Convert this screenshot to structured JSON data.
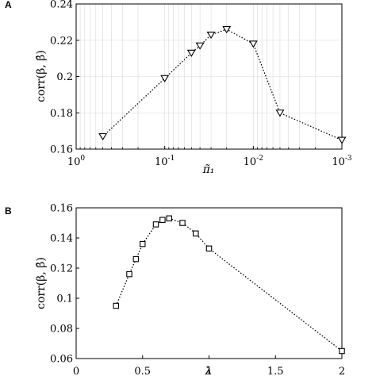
{
  "chart_data": [
    {
      "panel": "A",
      "type": "line",
      "marker": "triangle-down",
      "xscale": "log",
      "x_reversed": true,
      "x": [
        0.5,
        0.1,
        0.05,
        0.04,
        0.03,
        0.02,
        0.01,
        0.005,
        0.001
      ],
      "y": [
        0.167,
        0.199,
        0.213,
        0.217,
        0.223,
        0.226,
        0.218,
        0.18,
        0.165
      ],
      "xlim": [
        1,
        0.001
      ],
      "ylim": [
        0.16,
        0.24
      ],
      "xticks": [
        {
          "value": 1,
          "base": "10",
          "exp": "0"
        },
        {
          "value": 0.1,
          "base": "10",
          "exp": "-1"
        },
        {
          "value": 0.01,
          "base": "10",
          "exp": "-2"
        },
        {
          "value": 0.001,
          "base": "10",
          "exp": "-3"
        }
      ],
      "yticks": [
        {
          "value": 0.16,
          "label": "0.16"
        },
        {
          "value": 0.18,
          "label": "0.18"
        },
        {
          "value": 0.2,
          "label": "0.2"
        },
        {
          "value": 0.22,
          "label": "0.22"
        },
        {
          "value": 0.24,
          "label": "0.24"
        }
      ],
      "xlabel": "π̃₁",
      "ylabel": "corr(β, β̂)",
      "grid": true
    },
    {
      "panel": "B",
      "type": "line",
      "marker": "square",
      "xscale": "linear",
      "x": [
        0.3,
        0.4,
        0.45,
        0.5,
        0.6,
        0.65,
        0.7,
        0.8,
        0.9,
        1.0,
        2.0
      ],
      "y": [
        0.095,
        0.116,
        0.126,
        0.136,
        0.149,
        0.152,
        0.153,
        0.15,
        0.143,
        0.133,
        0.065
      ],
      "xlim": [
        0,
        2
      ],
      "ylim": [
        0.06,
        0.16
      ],
      "xticks": [
        {
          "value": 0,
          "label": "0"
        },
        {
          "value": 0.5,
          "label": "0.5"
        },
        {
          "value": 1,
          "label": "1"
        },
        {
          "value": 1.5,
          "label": "1.5"
        },
        {
          "value": 2,
          "label": "2"
        }
      ],
      "yticks": [
        {
          "value": 0.06,
          "label": "0.06"
        },
        {
          "value": 0.08,
          "label": "0.08"
        },
        {
          "value": 0.1,
          "label": "0.1"
        },
        {
          "value": 0.12,
          "label": "0.12"
        },
        {
          "value": 0.14,
          "label": "0.14"
        },
        {
          "value": 0.16,
          "label": "0.16"
        }
      ],
      "xlabel": "λ",
      "ylabel": "corr(β, β̂)",
      "grid": false
    }
  ]
}
